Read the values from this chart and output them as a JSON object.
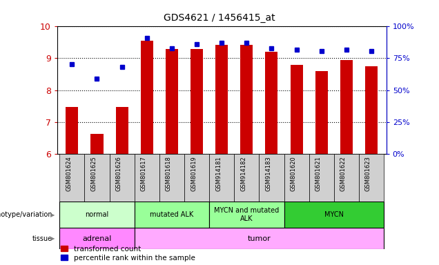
{
  "title": "GDS4621 / 1456415_at",
  "samples": [
    "GSM801624",
    "GSM801625",
    "GSM801626",
    "GSM801617",
    "GSM801618",
    "GSM801619",
    "GSM914181",
    "GSM914182",
    "GSM914183",
    "GSM801620",
    "GSM801621",
    "GSM801622",
    "GSM801623"
  ],
  "bar_values": [
    7.47,
    6.62,
    7.47,
    9.55,
    9.3,
    9.3,
    9.42,
    9.42,
    9.2,
    8.8,
    8.6,
    8.95,
    8.75
  ],
  "dot_values": [
    8.82,
    8.35,
    8.72,
    9.65,
    9.32,
    9.45,
    9.48,
    9.48,
    9.32,
    9.27,
    9.22,
    9.27,
    9.22
  ],
  "ylim_left": [
    6,
    10
  ],
  "ylim_right": [
    0,
    100
  ],
  "yticks_left": [
    6,
    7,
    8,
    9,
    10
  ],
  "yticks_right": [
    0,
    25,
    50,
    75,
    100
  ],
  "ytick_labels_right": [
    "0%",
    "25%",
    "50%",
    "75%",
    "100%"
  ],
  "bar_color": "#cc0000",
  "dot_color": "#0000cc",
  "bar_base": 6.0,
  "genotype_groups": [
    {
      "label": "normal",
      "start": 0,
      "end": 3,
      "color": "#ccffcc"
    },
    {
      "label": "mutated ALK",
      "start": 3,
      "end": 6,
      "color": "#99ff99"
    },
    {
      "label": "MYCN and mutated\nALK",
      "start": 6,
      "end": 9,
      "color": "#99ff99"
    },
    {
      "label": "MYCN",
      "start": 9,
      "end": 13,
      "color": "#33cc33"
    }
  ],
  "tissue_groups": [
    {
      "label": "adrenal",
      "start": 0,
      "end": 3,
      "color": "#ff88ff"
    },
    {
      "label": "tumor",
      "start": 3,
      "end": 13,
      "color": "#ffaaff"
    }
  ],
  "legend_items": [
    {
      "label": "transformed count",
      "color": "#cc0000"
    },
    {
      "label": "percentile rank within the sample",
      "color": "#0000cc"
    }
  ],
  "tick_color_left": "#cc0000",
  "tick_color_right": "#0000cc",
  "background_color": "#ffffff",
  "bar_width": 0.5,
  "figsize": [
    6.36,
    3.84
  ],
  "dpi": 100
}
